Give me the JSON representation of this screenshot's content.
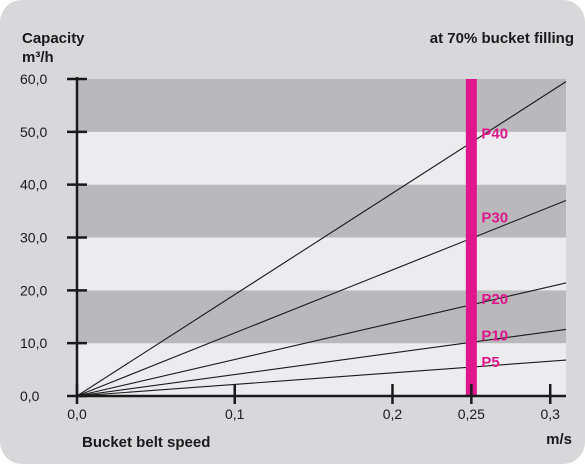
{
  "colors": {
    "background": "#d8d8da",
    "band_dark": "#b9b9bb",
    "band_light": "#ececee",
    "marker": "#e0168c",
    "line": "#1a1a1a"
  },
  "chart_data": {
    "type": "line",
    "ylabel": "Capacity",
    "ylabel_unit": "m³/h",
    "subtitle": "at 70% bucket filling",
    "xlabel": "Bucket belt speed",
    "xunit": "m/s",
    "xlim": [
      0,
      0.31
    ],
    "ylim": [
      0,
      60
    ],
    "x_ticks": [
      {
        "value": 0,
        "label": "0,0"
      },
      {
        "value": 0.1,
        "label": "0,1"
      },
      {
        "value": 0.2,
        "label": "0,2"
      },
      {
        "value": 0.25,
        "label": "0,25"
      },
      {
        "value": 0.3,
        "label": "0,3"
      }
    ],
    "y_ticks": [
      {
        "value": 0,
        "label": "0,0"
      },
      {
        "value": 10,
        "label": "10,0"
      },
      {
        "value": 20,
        "label": "20,0"
      },
      {
        "value": 30,
        "label": "30,0"
      },
      {
        "value": 40,
        "label": "40,0"
      },
      {
        "value": 50,
        "label": "50,0"
      },
      {
        "value": 60,
        "label": "60,0"
      }
    ],
    "bands": "alternating shaded 10 m³/h bands",
    "marker_line": {
      "x": 0.25,
      "color": "#e0168c"
    },
    "series": [
      {
        "name": "P40",
        "x": [
          0,
          0.31
        ],
        "y": [
          0,
          59.5
        ]
      },
      {
        "name": "P30",
        "x": [
          0,
          0.31
        ],
        "y": [
          0,
          37.0
        ]
      },
      {
        "name": "P20",
        "x": [
          0,
          0.31
        ],
        "y": [
          0,
          21.4
        ]
      },
      {
        "name": "P10",
        "x": [
          0,
          0.31
        ],
        "y": [
          0,
          12.6
        ]
      },
      {
        "name": "P5",
        "x": [
          0,
          0.31
        ],
        "y": [
          0,
          6.8
        ]
      }
    ]
  }
}
